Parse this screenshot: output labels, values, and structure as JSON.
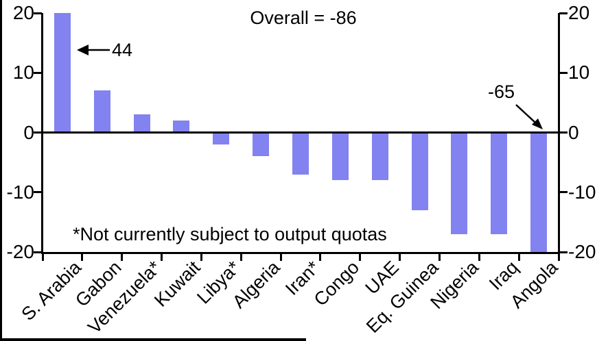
{
  "chart_data": {
    "type": "bar",
    "title": "",
    "categories": [
      "S. Arabia",
      "Gabon",
      "Venezuela*",
      "Kuwait",
      "Libya*",
      "Algeria",
      "Iran*",
      "Congo",
      "UAE",
      "Eq. Guinea",
      "Nigeria",
      "Iraq",
      "Angola"
    ],
    "values": [
      44,
      7,
      3,
      2,
      -2,
      -4,
      -7,
      -8,
      -8,
      -13,
      -17,
      -17,
      -65
    ],
    "ylim": [
      -20,
      20
    ],
    "display_clip": [
      -20,
      20
    ],
    "yticks": [
      20,
      10,
      0,
      -10,
      -20
    ],
    "ytick_labels": [
      "20",
      "10",
      "0",
      "-10",
      "-20"
    ],
    "grid": false,
    "legend": null,
    "bar_color": "#8282f0",
    "axis_color": "#000000",
    "annotations": {
      "overall": {
        "text": "Overall = -86"
      },
      "saudi_arabia_actual": {
        "text": "44"
      },
      "angola_actual": {
        "text": "-65"
      },
      "footnote": {
        "text": "*Not currently subject to output quotas"
      }
    }
  }
}
